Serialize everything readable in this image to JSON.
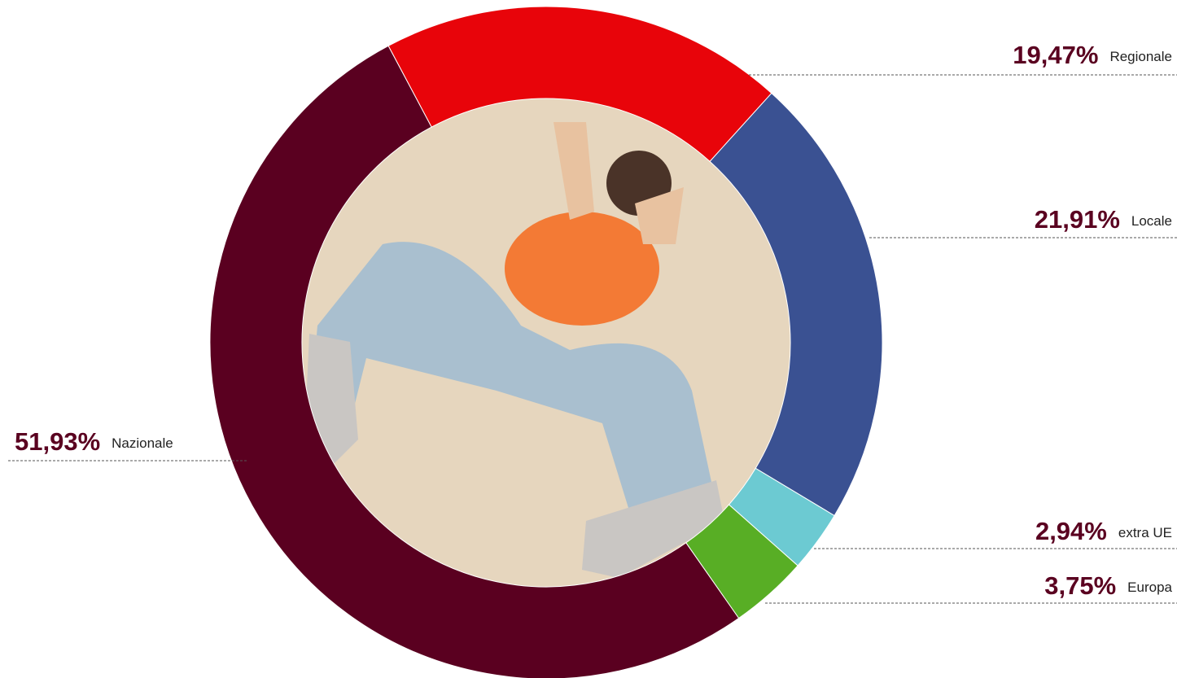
{
  "chart_data": {
    "type": "pie",
    "donut": true,
    "categories": [
      "Regionale",
      "Locale",
      "extra UE",
      "Europa",
      "Nazionale"
    ],
    "values": [
      19.47,
      21.91,
      2.94,
      3.75,
      51.93
    ],
    "value_labels": [
      "19,47%",
      "21,91%",
      "2,94%",
      "3,75%",
      "51,93%"
    ],
    "colors": [
      "#e8040a",
      "#3a5192",
      "#6ccad2",
      "#58ae25",
      "#5a0020"
    ]
  }
}
